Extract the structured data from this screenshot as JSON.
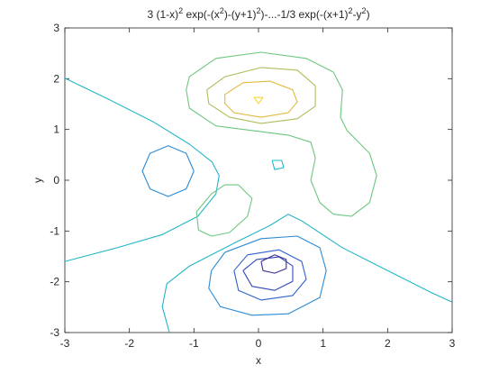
{
  "chart_data": {
    "type": "contour",
    "title": [
      "3 (1-x)",
      "2",
      " exp(-(x",
      "2",
      ")-(y+1)",
      "2",
      ")-...-1/3 exp(-(x+1)",
      "2",
      "-y",
      "2",
      ")"
    ],
    "x_label": "x",
    "y_label": "y",
    "xlim": [
      -3,
      3
    ],
    "ylim": [
      -3,
      3
    ],
    "xticks": [
      -3,
      -2,
      -1,
      0,
      1,
      2,
      3
    ],
    "yticks": [
      -3,
      -2,
      -1,
      0,
      1,
      2,
      3
    ],
    "series": [
      {
        "color": "#22b6c6",
        "x": [
          -3,
          -2.33,
          -1.63,
          -1.07,
          -0.72,
          -0.61,
          -0.66,
          -0.94,
          -1.49,
          -2.19,
          -3
        ],
        "y": [
          2.01,
          1.6,
          1.15,
          0.71,
          0.36,
          0.09,
          -0.27,
          -0.71,
          -1.07,
          -1.33,
          -1.6
        ]
      },
      {
        "color": "#22b6c6",
        "x": [
          -1.38,
          -1.49,
          -1.42,
          -1.07,
          -0.38,
          0.18,
          0.46,
          0.67,
          1.3,
          2.0,
          2.69,
          3
        ],
        "y": [
          -3,
          -2.49,
          -2.04,
          -1.69,
          -1.24,
          -0.89,
          -0.67,
          -0.8,
          -1.33,
          -1.78,
          -2.22,
          -2.4
        ]
      },
      {
        "color": "#2a8bd6",
        "x": [
          -1.0,
          -1.12,
          -1.4,
          -1.68,
          -1.8,
          -1.68,
          -1.4,
          -1.12,
          -1.0
        ],
        "y": [
          0.18,
          0.53,
          0.68,
          0.53,
          0.18,
          -0.17,
          -0.32,
          -0.17,
          0.18
        ]
      },
      {
        "color": "#6cc77e",
        "x": [
          -0.31,
          -0.1,
          -0.17,
          -0.45,
          -0.73,
          -0.93,
          -0.96,
          -0.73,
          -0.52,
          -0.31
        ],
        "y": [
          -0.09,
          -0.36,
          -0.71,
          -1.03,
          -1.1,
          -0.98,
          -0.62,
          -0.27,
          -0.09,
          -0.09
        ]
      },
      {
        "color": "#22b6c6",
        "x": [
          0.21,
          0.36,
          0.39,
          0.25,
          0.21
        ],
        "y": [
          0.39,
          0.39,
          0.25,
          0.21,
          0.39
        ]
      },
      {
        "color": "#6cc77e",
        "x": [
          -1.07,
          -0.66,
          0.04,
          0.74,
          1.16,
          1.3,
          1.27,
          1.37,
          1.72,
          1.83,
          1.72,
          1.44,
          1.16,
          0.95,
          0.81,
          0.88,
          0.81,
          0.46,
          -0.1,
          -0.66,
          -1.07,
          -1.12,
          -1.07
        ],
        "y": [
          2.04,
          2.4,
          2.52,
          2.4,
          2.13,
          1.78,
          1.24,
          0.98,
          0.53,
          0.09,
          -0.44,
          -0.71,
          -0.67,
          -0.44,
          0,
          0.44,
          0.75,
          0.89,
          0.98,
          1.07,
          1.42,
          1.78,
          2.04
        ]
      },
      {
        "color": "#aebd5c",
        "x": [
          -0.8,
          -0.52,
          0.04,
          0.6,
          0.88,
          0.88,
          0.6,
          0.04,
          -0.45,
          -0.77,
          -0.8
        ],
        "y": [
          1.78,
          2.04,
          2.22,
          2.17,
          1.86,
          1.46,
          1.21,
          1.12,
          1.24,
          1.51,
          1.78
        ]
      },
      {
        "color": "#e2b940",
        "x": [
          -0.52,
          -0.24,
          0.18,
          0.53,
          0.6,
          0.46,
          0.04,
          -0.38,
          -0.52,
          -0.52
        ],
        "y": [
          1.69,
          1.92,
          1.95,
          1.78,
          1.54,
          1.33,
          1.24,
          1.33,
          1.51,
          1.69
        ]
      },
      {
        "color": "#f7d82c",
        "x": [
          -0.07,
          0.07,
          0,
          -0.07
        ],
        "y": [
          1.63,
          1.63,
          1.51,
          1.63
        ]
      },
      {
        "color": "#2a8bd6",
        "x": [
          -0.73,
          -0.52,
          0.04,
          0.6,
          0.95,
          1.05,
          0.95,
          0.46,
          -0.1,
          -0.59,
          -0.77,
          -0.73
        ],
        "y": [
          -1.78,
          -1.42,
          -1.15,
          -1.1,
          -1.33,
          -1.78,
          -2.31,
          -2.63,
          -2.66,
          -2.49,
          -2.13,
          -1.78
        ]
      },
      {
        "color": "#2f62cf",
        "x": [
          -0.38,
          -0.17,
          0.32,
          0.67,
          0.74,
          0.53,
          0.04,
          -0.31,
          -0.38
        ],
        "y": [
          -1.78,
          -1.47,
          -1.37,
          -1.6,
          -1.95,
          -2.27,
          -2.36,
          -2.17,
          -1.78
        ]
      },
      {
        "color": "#3448b8",
        "x": [
          -0.24,
          -0.03,
          0.32,
          0.53,
          0.53,
          0.25,
          -0.1,
          -0.24
        ],
        "y": [
          -1.78,
          -1.56,
          -1.51,
          -1.69,
          -1.99,
          -2.17,
          -2.09,
          -1.78
        ]
      },
      {
        "color": "#3b2f92",
        "x": [
          0.04,
          0.25,
          0.43,
          0.43,
          0.25,
          0.07,
          0.04
        ],
        "y": [
          -1.6,
          -1.47,
          -1.56,
          -1.74,
          -1.83,
          -1.78,
          -1.6
        ]
      }
    ]
  }
}
